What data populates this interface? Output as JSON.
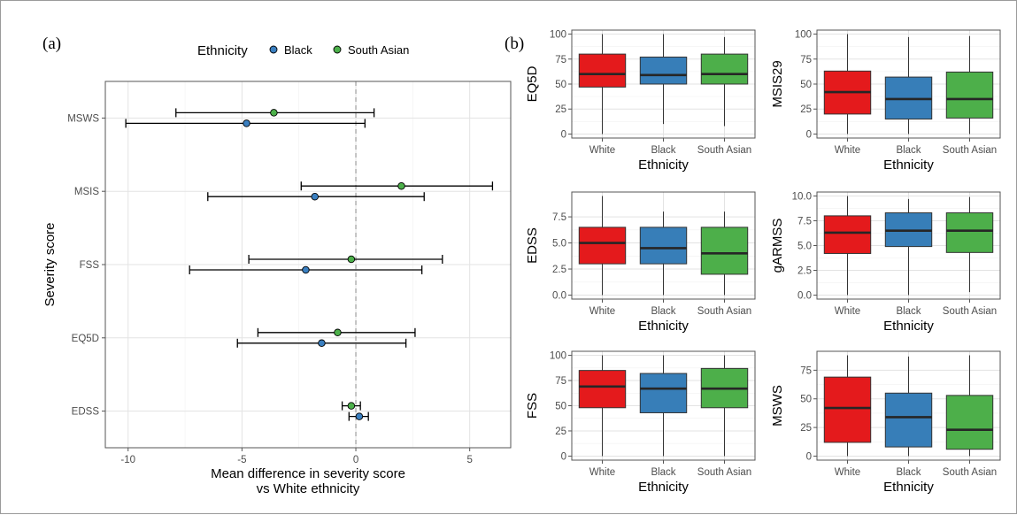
{
  "chart_data": [
    {
      "type": "scatter",
      "panel_label": "(a)",
      "legend_title": "Ethnicity",
      "legend_position": "top",
      "xlabel": "Mean difference in severity score\nvs White ethnicity",
      "ylabel": "Severity score",
      "xlim": [
        -11,
        6.8
      ],
      "xticks": [
        -10,
        -5,
        0,
        5
      ],
      "categories": [
        "MSWS",
        "MSIS",
        "FSS",
        "EQ5D",
        "EDSS"
      ],
      "reference_line": 0,
      "grid": true,
      "series": [
        {
          "name": "Black",
          "color": "#3a7fc0",
          "values": [
            {
              "category": "MSWS",
              "estimate": -4.8,
              "lower": -10.1,
              "upper": 0.4
            },
            {
              "category": "MSIS",
              "estimate": -1.8,
              "lower": -6.5,
              "upper": 3.0
            },
            {
              "category": "FSS",
              "estimate": -2.2,
              "lower": -7.3,
              "upper": 2.9
            },
            {
              "category": "EQ5D",
              "estimate": -1.5,
              "lower": -5.2,
              "upper": 2.2
            },
            {
              "category": "EDSS",
              "estimate": 0.15,
              "lower": -0.3,
              "upper": 0.55
            }
          ]
        },
        {
          "name": "South Asian",
          "color": "#4cb04a",
          "values": [
            {
              "category": "MSWS",
              "estimate": -3.6,
              "lower": -7.9,
              "upper": 0.8
            },
            {
              "category": "MSIS",
              "estimate": 2.0,
              "lower": -2.4,
              "upper": 6.0
            },
            {
              "category": "FSS",
              "estimate": -0.2,
              "lower": -4.7,
              "upper": 3.8
            },
            {
              "category": "EQ5D",
              "estimate": -0.8,
              "lower": -4.3,
              "upper": 2.6
            },
            {
              "category": "EDSS",
              "estimate": -0.2,
              "lower": -0.6,
              "upper": 0.2
            }
          ]
        }
      ]
    },
    {
      "type": "box",
      "panel_label": "(b)",
      "ylabel": "EQ5D",
      "xlabel": "Ethnicity",
      "categories": [
        "White",
        "Black",
        "South Asian"
      ],
      "ylim": [
        0,
        100
      ],
      "yticks": [
        0,
        25,
        50,
        75,
        100
      ],
      "boxes": [
        {
          "category": "White",
          "min": 0,
          "q1": 47,
          "median": 60,
          "q3": 80,
          "max": 100,
          "color": "#e41a1c"
        },
        {
          "category": "Black",
          "min": 10,
          "q1": 50,
          "median": 59,
          "q3": 77,
          "max": 100,
          "color": "#377eb8"
        },
        {
          "category": "South Asian",
          "min": 8,
          "q1": 50,
          "median": 60,
          "q3": 80,
          "max": 97,
          "color": "#4daf4a"
        }
      ]
    },
    {
      "type": "box",
      "ylabel": "MSIS29",
      "xlabel": "Ethnicity",
      "categories": [
        "White",
        "Black",
        "South Asian"
      ],
      "ylim": [
        0,
        100
      ],
      "yticks": [
        0,
        25,
        50,
        75,
        100
      ],
      "boxes": [
        {
          "category": "White",
          "min": 0,
          "q1": 20,
          "median": 42,
          "q3": 63,
          "max": 100,
          "color": "#e41a1c"
        },
        {
          "category": "Black",
          "min": 0,
          "q1": 15,
          "median": 35,
          "q3": 57,
          "max": 97,
          "color": "#377eb8"
        },
        {
          "category": "South Asian",
          "min": 0,
          "q1": 16,
          "median": 35,
          "q3": 62,
          "max": 98,
          "color": "#4daf4a"
        }
      ]
    },
    {
      "type": "box",
      "ylabel": "EDSS",
      "xlabel": "Ethnicity",
      "categories": [
        "White",
        "Black",
        "South Asian"
      ],
      "ylim": [
        0,
        9.5
      ],
      "yticks": [
        0.0,
        2.5,
        5.0,
        7.5
      ],
      "ytick_labels": [
        "0.0",
        "2.5",
        "5.0",
        "7.5"
      ],
      "boxes": [
        {
          "category": "White",
          "min": 0,
          "q1": 3.0,
          "median": 5.0,
          "q3": 6.5,
          "max": 9.5,
          "color": "#e41a1c"
        },
        {
          "category": "Black",
          "min": 0,
          "q1": 3.0,
          "median": 4.5,
          "q3": 6.5,
          "max": 8.0,
          "color": "#377eb8"
        },
        {
          "category": "South Asian",
          "min": 0,
          "q1": 2.0,
          "median": 4.0,
          "q3": 6.5,
          "max": 8.0,
          "color": "#4daf4a"
        }
      ]
    },
    {
      "type": "box",
      "ylabel": "gARMSS",
      "xlabel": "Ethnicity",
      "categories": [
        "White",
        "Black",
        "South Asian"
      ],
      "ylim": [
        0,
        10
      ],
      "yticks": [
        0.0,
        2.5,
        5.0,
        7.5,
        10.0
      ],
      "ytick_labels": [
        "0.0",
        "2.5",
        "5.0",
        "7.5",
        "10.0"
      ],
      "boxes": [
        {
          "category": "White",
          "min": 0,
          "q1": 4.2,
          "median": 6.3,
          "q3": 8.0,
          "max": 10.0,
          "color": "#e41a1c"
        },
        {
          "category": "Black",
          "min": 0,
          "q1": 4.9,
          "median": 6.5,
          "q3": 8.3,
          "max": 9.7,
          "color": "#377eb8"
        },
        {
          "category": "South Asian",
          "min": 0.3,
          "q1": 4.3,
          "median": 6.5,
          "q3": 8.3,
          "max": 9.9,
          "color": "#4daf4a"
        }
      ]
    },
    {
      "type": "box",
      "ylabel": "FSS",
      "xlabel": "Ethnicity",
      "categories": [
        "White",
        "Black",
        "South Asian"
      ],
      "ylim": [
        0,
        100
      ],
      "yticks": [
        0,
        25,
        50,
        75,
        100
      ],
      "boxes": [
        {
          "category": "White",
          "min": 0,
          "q1": 48,
          "median": 69,
          "q3": 85,
          "max": 100,
          "color": "#e41a1c"
        },
        {
          "category": "Black",
          "min": 0,
          "q1": 43,
          "median": 67,
          "q3": 82,
          "max": 100,
          "color": "#377eb8"
        },
        {
          "category": "South Asian",
          "min": 0,
          "q1": 48,
          "median": 67,
          "q3": 87,
          "max": 100,
          "color": "#4daf4a"
        }
      ]
    },
    {
      "type": "box",
      "ylabel": "MSWS",
      "xlabel": "Ethnicity",
      "categories": [
        "White",
        "Black",
        "South Asian"
      ],
      "ylim": [
        0,
        88
      ],
      "yticks": [
        0,
        25,
        50,
        75
      ],
      "boxes": [
        {
          "category": "White",
          "min": 0,
          "q1": 12,
          "median": 42,
          "q3": 69,
          "max": 88,
          "color": "#e41a1c"
        },
        {
          "category": "Black",
          "min": 0,
          "q1": 8,
          "median": 34,
          "q3": 55,
          "max": 87,
          "color": "#377eb8"
        },
        {
          "category": "South Asian",
          "min": 0,
          "q1": 6,
          "median": 23,
          "q3": 53,
          "max": 88,
          "color": "#4daf4a"
        }
      ]
    }
  ]
}
